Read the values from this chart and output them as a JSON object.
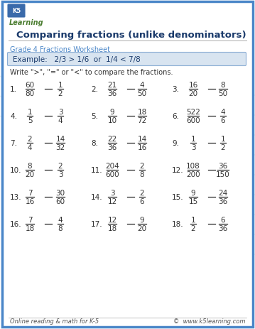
{
  "title": "Comparing fractions (unlike denominators)",
  "subtitle": "Grade 4 Fractions Worksheet",
  "example_text": "Example:   2/3 > 1/6  or  1/4 < 7/8",
  "instruction": "Write \">\", \"=\" or \"<\" to compare the fractions.",
  "problems": [
    {
      "num": "1.",
      "n1": "60",
      "d1": "80",
      "n2": "1",
      "d2": "2"
    },
    {
      "num": "2.",
      "n1": "21",
      "d1": "36",
      "n2": "4",
      "d2": "50"
    },
    {
      "num": "3.",
      "n1": "16",
      "d1": "20",
      "n2": "8",
      "d2": "50"
    },
    {
      "num": "4.",
      "n1": "1",
      "d1": "5",
      "n2": "3",
      "d2": "4"
    },
    {
      "num": "5.",
      "n1": "9",
      "d1": "10",
      "n2": "18",
      "d2": "72"
    },
    {
      "num": "6.",
      "n1": "522",
      "d1": "600",
      "n2": "4",
      "d2": "6"
    },
    {
      "num": "7.",
      "n1": "2",
      "d1": "4",
      "n2": "14",
      "d2": "32"
    },
    {
      "num": "8.",
      "n1": "22",
      "d1": "36",
      "n2": "14",
      "d2": "16"
    },
    {
      "num": "9.",
      "n1": "1",
      "d1": "3",
      "n2": "1",
      "d2": "2"
    },
    {
      "num": "10.",
      "n1": "8",
      "d1": "20",
      "n2": "2",
      "d2": "3"
    },
    {
      "num": "11.",
      "n1": "204",
      "d1": "600",
      "n2": "2",
      "d2": "8"
    },
    {
      "num": "12.",
      "n1": "108",
      "d1": "200",
      "n2": "36",
      "d2": "150"
    },
    {
      "num": "13.",
      "n1": "7",
      "d1": "16",
      "n2": "30",
      "d2": "60"
    },
    {
      "num": "14.",
      "n1": "3",
      "d1": "12",
      "n2": "2",
      "d2": "6"
    },
    {
      "num": "15.",
      "n1": "9",
      "d1": "15",
      "n2": "24",
      "d2": "36"
    },
    {
      "num": "16.",
      "n1": "7",
      "d1": "18",
      "n2": "4",
      "d2": "8"
    },
    {
      "num": "17.",
      "n1": "12",
      "d1": "18",
      "n2": "9",
      "d2": "20"
    },
    {
      "num": "18.",
      "n1": "1",
      "d1": "2",
      "n2": "6",
      "d2": "36"
    }
  ],
  "footer_left": "Online reading & math for K-5",
  "footer_right": "©  www.k5learning.com",
  "border_color": "#4a86c8",
  "title_color": "#1a3a6b",
  "subtitle_color": "#4a86c8",
  "example_bg": "#d8e4f0",
  "example_border": "#8aadd4",
  "text_color": "#333333",
  "frac_color": "#333333",
  "bg_color": "#ffffff",
  "diag_color": "#e0e8f0",
  "footer_color": "#555555",
  "logo_green": "#4a7c2f",
  "logo_blue": "#3a6aaa"
}
